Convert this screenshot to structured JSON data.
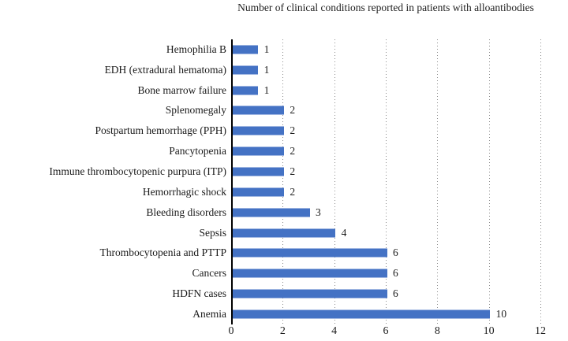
{
  "chart_data": {
    "type": "bar",
    "orientation": "horizontal",
    "title": "Number of clinical conditions reported in patients with alloantibodies",
    "categories": [
      "Hemophilia B",
      "EDH (extradural hematoma)",
      "Bone marrow failure",
      "Splenomegaly",
      "Postpartum hemorrhage (PPH)",
      "Pancytopenia",
      "Immune thrombocytopenic purpura (ITP)",
      "Hemorrhagic shock",
      "Bleeding disorders",
      "Sepsis",
      "Thrombocytopenia and PTTP",
      "Cancers",
      "HDFN cases",
      "Anemia"
    ],
    "values": [
      1,
      1,
      1,
      2,
      2,
      2,
      2,
      2,
      3,
      4,
      6,
      6,
      6,
      10
    ],
    "data_labels_shown": true,
    "xlabel": "",
    "ylabel": "",
    "xlim": [
      0,
      12
    ],
    "x_ticks": [
      0,
      2,
      4,
      6,
      8,
      10,
      12
    ],
    "grid": "vertical-dotted",
    "legend_position": "none",
    "bar_color": "#4472c4",
    "axis_color": "#000000",
    "gridline_color": "#8c8c8c",
    "text_color": "#1a1a1a",
    "background_color": "#ffffff"
  }
}
